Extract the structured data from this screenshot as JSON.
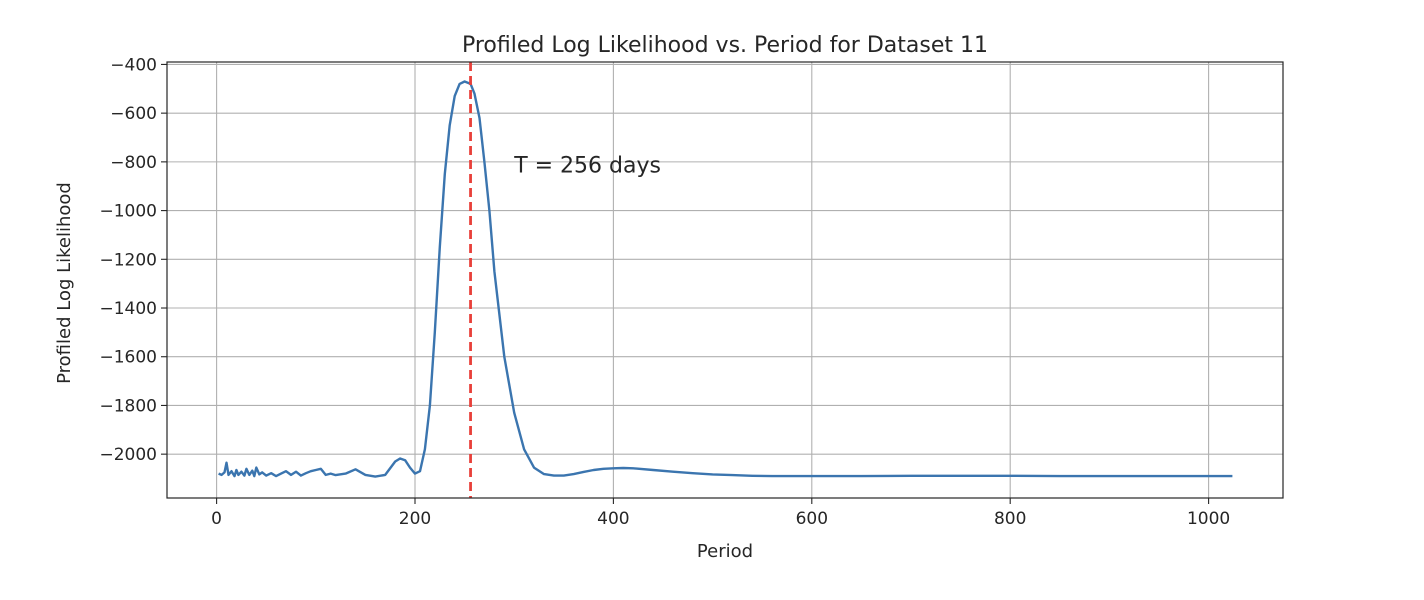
{
  "chart_data": {
    "type": "line",
    "title": "Profiled Log Likelihood vs. Period for Dataset 11",
    "xlabel": "Period",
    "ylabel": "Profiled Log Likelihood",
    "xlim": [
      -50,
      1075
    ],
    "ylim": [
      -2180,
      -390
    ],
    "xticks": [
      0,
      200,
      400,
      600,
      800,
      1000
    ],
    "yticks": [
      -2000,
      -1800,
      -1600,
      -1400,
      -1200,
      -1000,
      -800,
      -600,
      -400
    ],
    "xtick_labels": [
      "0",
      "200",
      "400",
      "600",
      "800",
      "1000"
    ],
    "ytick_labels": [
      "−2000",
      "−1800",
      "−1600",
      "−1400",
      "−1200",
      "−1000",
      "−800",
      "−600",
      "−400"
    ],
    "grid": true,
    "series": [
      {
        "color": "#3b75af",
        "x": [
          2,
          5,
          8,
          10,
          12,
          15,
          18,
          20,
          22,
          25,
          28,
          30,
          33,
          36,
          38,
          40,
          43,
          46,
          50,
          55,
          60,
          65,
          70,
          75,
          80,
          85,
          90,
          95,
          100,
          105,
          110,
          115,
          120,
          130,
          140,
          150,
          160,
          170,
          180,
          185,
          190,
          195,
          200,
          205,
          210,
          215,
          220,
          225,
          230,
          235,
          240,
          245,
          250,
          256,
          260,
          265,
          270,
          275,
          280,
          290,
          300,
          310,
          320,
          330,
          340,
          350,
          360,
          370,
          380,
          390,
          400,
          410,
          420,
          440,
          460,
          480,
          500,
          520,
          540,
          560,
          600,
          650,
          700,
          750,
          800,
          850,
          900,
          950,
          1000,
          1024
        ],
        "y": [
          -2080,
          -2085,
          -2075,
          -2035,
          -2085,
          -2070,
          -2090,
          -2065,
          -2085,
          -2072,
          -2088,
          -2060,
          -2085,
          -2068,
          -2090,
          -2055,
          -2083,
          -2075,
          -2088,
          -2078,
          -2090,
          -2080,
          -2070,
          -2085,
          -2072,
          -2088,
          -2078,
          -2070,
          -2065,
          -2060,
          -2085,
          -2080,
          -2086,
          -2080,
          -2062,
          -2085,
          -2092,
          -2085,
          -2030,
          -2018,
          -2025,
          -2055,
          -2080,
          -2070,
          -1980,
          -1800,
          -1500,
          -1150,
          -850,
          -650,
          -530,
          -480,
          -470,
          -480,
          -520,
          -620,
          -800,
          -1000,
          -1250,
          -1600,
          -1830,
          -1980,
          -2055,
          -2082,
          -2088,
          -2088,
          -2082,
          -2073,
          -2065,
          -2060,
          -2058,
          -2057,
          -2058,
          -2065,
          -2072,
          -2078,
          -2083,
          -2086,
          -2089,
          -2090,
          -2090,
          -2090,
          -2089,
          -2089,
          -2089,
          -2090,
          -2090,
          -2090,
          -2090,
          -2090
        ]
      }
    ],
    "reference_line": {
      "x": 256,
      "color": "#e8403a",
      "style": "dashed"
    },
    "annotation": {
      "text": "T = 256 days",
      "x": 300,
      "y": -810
    }
  }
}
